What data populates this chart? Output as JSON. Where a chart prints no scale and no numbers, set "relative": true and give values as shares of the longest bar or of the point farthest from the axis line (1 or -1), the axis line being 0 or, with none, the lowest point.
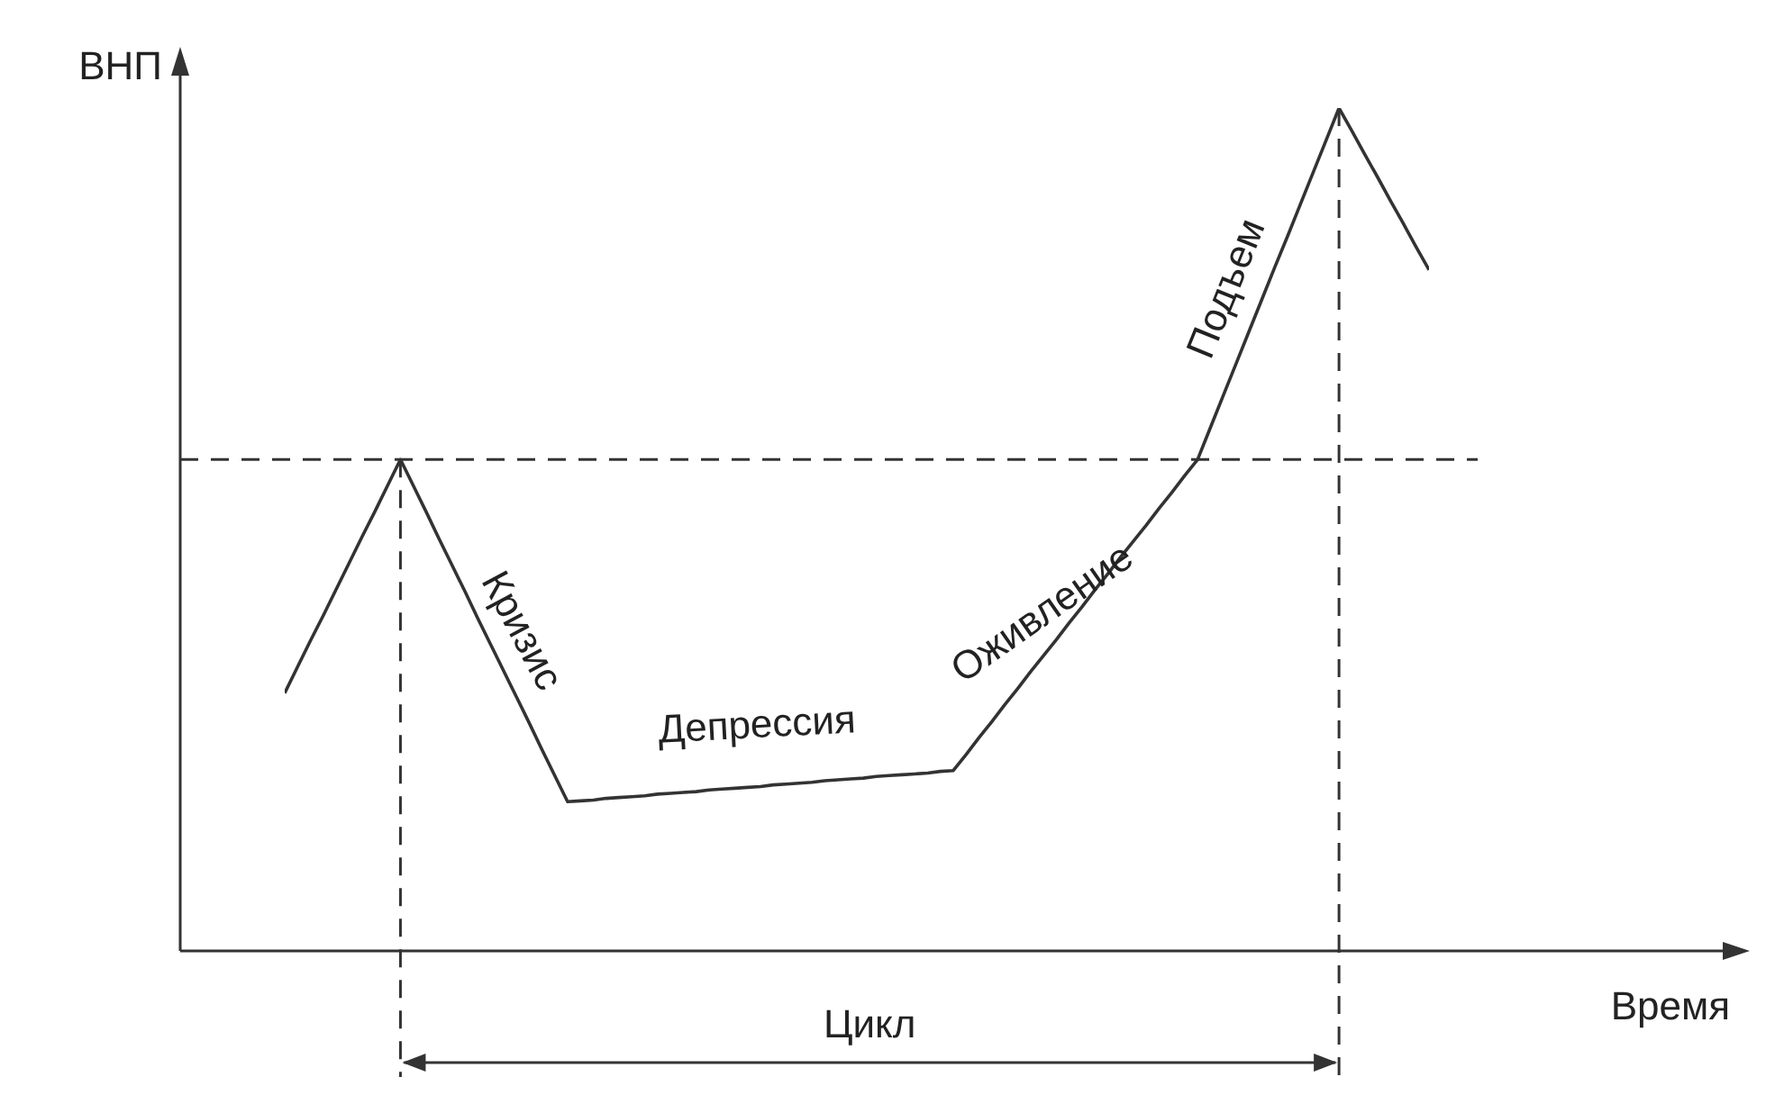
{
  "chart_data": {
    "type": "line",
    "relative": true,
    "ylabel": "ВНП",
    "xlabel": "Время",
    "categories": [
      null,
      null,
      null,
      null,
      null,
      null,
      null,
      null,
      null,
      null,
      null,
      null,
      null,
      null,
      null,
      null,
      null,
      null,
      null,
      null,
      null,
      null,
      null,
      null,
      null,
      null,
      null,
      null,
      null,
      null,
      null,
      null,
      null,
      null,
      null,
      null,
      null,
      null,
      null,
      null,
      null,
      null,
      null,
      null,
      null,
      null,
      null,
      null,
      null,
      null,
      null,
      null,
      null,
      null,
      null,
      null,
      null,
      null,
      null,
      null,
      null,
      null,
      null,
      null,
      null,
      null,
      null,
      null,
      null,
      null,
      null,
      null,
      null,
      null,
      null,
      null,
      null,
      null,
      null,
      null,
      null,
      null,
      null,
      null,
      null,
      null,
      null,
      null,
      null,
      null
    ],
    "series": [
      {
        "color": "#333333",
        "values": [
          0.306,
          0.337,
          0.368,
          0.398,
          0.429,
          0.46,
          0.491,
          0.521,
          0.552,
          0.583,
          0.552,
          0.521,
          0.489,
          0.458,
          0.427,
          0.395,
          0.364,
          0.333,
          0.302,
          0.271,
          0.239,
          0.208,
          0.177,
          0.178,
          0.179,
          0.181,
          0.182,
          0.183,
          0.184,
          0.186,
          0.187,
          0.188,
          0.189,
          0.191,
          0.192,
          0.193,
          0.194,
          0.195,
          0.197,
          0.198,
          0.199,
          0.2,
          0.202,
          0.203,
          0.204,
          0.205,
          0.207,
          0.208,
          0.209,
          0.21,
          0.211,
          0.213,
          0.214,
          0.233,
          0.253,
          0.272,
          0.292,
          0.311,
          0.331,
          0.35,
          0.369,
          0.389,
          0.408,
          0.428,
          0.447,
          0.467,
          0.486,
          0.505,
          0.525,
          0.544,
          0.564,
          0.583,
          0.621,
          0.659,
          0.697,
          0.735,
          0.773,
          0.811,
          0.848,
          0.886,
          0.924,
          0.962,
          1,
          0.973,
          0.945,
          0.918,
          0.89,
          0.863,
          0.835,
          0.808
        ]
      }
    ],
    "ref_lines": [
      {
        "axis": "y",
        "value": 0.583,
        "line_style": "dashed",
        "color": "#333333"
      }
    ],
    "annotations": [
      "Кризис",
      "Депрессия",
      "Оживление",
      "Подъем",
      "Цикл"
    ],
    "grid": false,
    "marker": "none",
    "line_style": "solid"
  }
}
